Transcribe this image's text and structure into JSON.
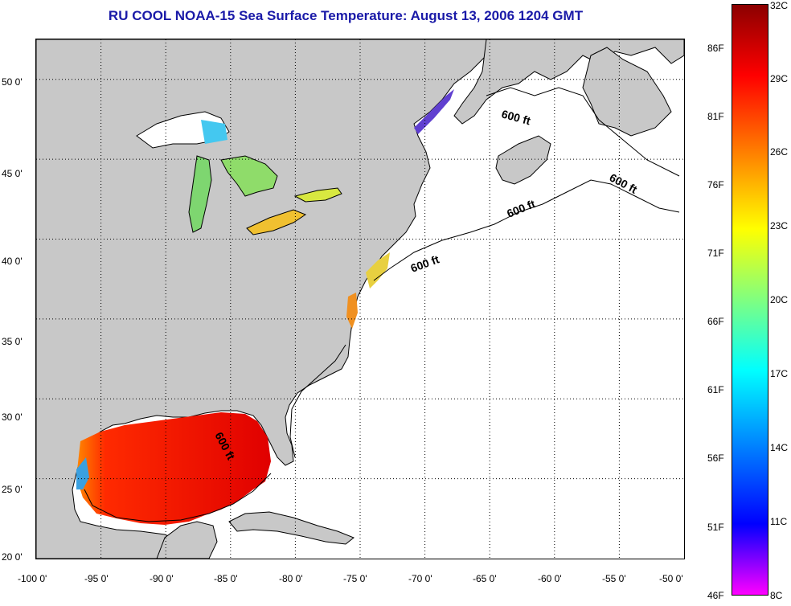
{
  "title": "RU COOL  NOAA-15  Sea Surface Temperature:  August 13, 2006 1204 GMT",
  "map": {
    "lon_ticks": [
      "-100 0'",
      "-95 0'",
      "-90 0'",
      "-85 0'",
      "-80 0'",
      "-75 0'",
      "-70 0'",
      "-65 0'",
      "-60 0'",
      "-55 0'",
      "-50 0'"
    ],
    "lat_ticks": [
      "20 0'",
      "25 0'",
      "30 0'",
      "35 0'",
      "40 0'",
      "45 0'",
      "50 0'"
    ],
    "lon_range": [
      -100,
      -50
    ],
    "lat_range": [
      20,
      52.5
    ],
    "contour_labels": [
      "600 ft",
      "600 ft",
      "600 ft",
      "600 ft",
      "600 ft"
    ],
    "colors": {
      "land": "#c8c8c8",
      "ocean": "#ffffff",
      "grid": "#000000"
    }
  },
  "colorbar": {
    "celsius_labels": [
      "32C",
      "29C",
      "26C",
      "23C",
      "20C",
      "17C",
      "14C",
      "11C",
      "8C"
    ],
    "fahrenheit_labels": [
      "86F",
      "81F",
      "76F",
      "71F",
      "66F",
      "61F",
      "56F",
      "51F",
      "46F"
    ],
    "range_c": [
      8,
      32
    ]
  }
}
